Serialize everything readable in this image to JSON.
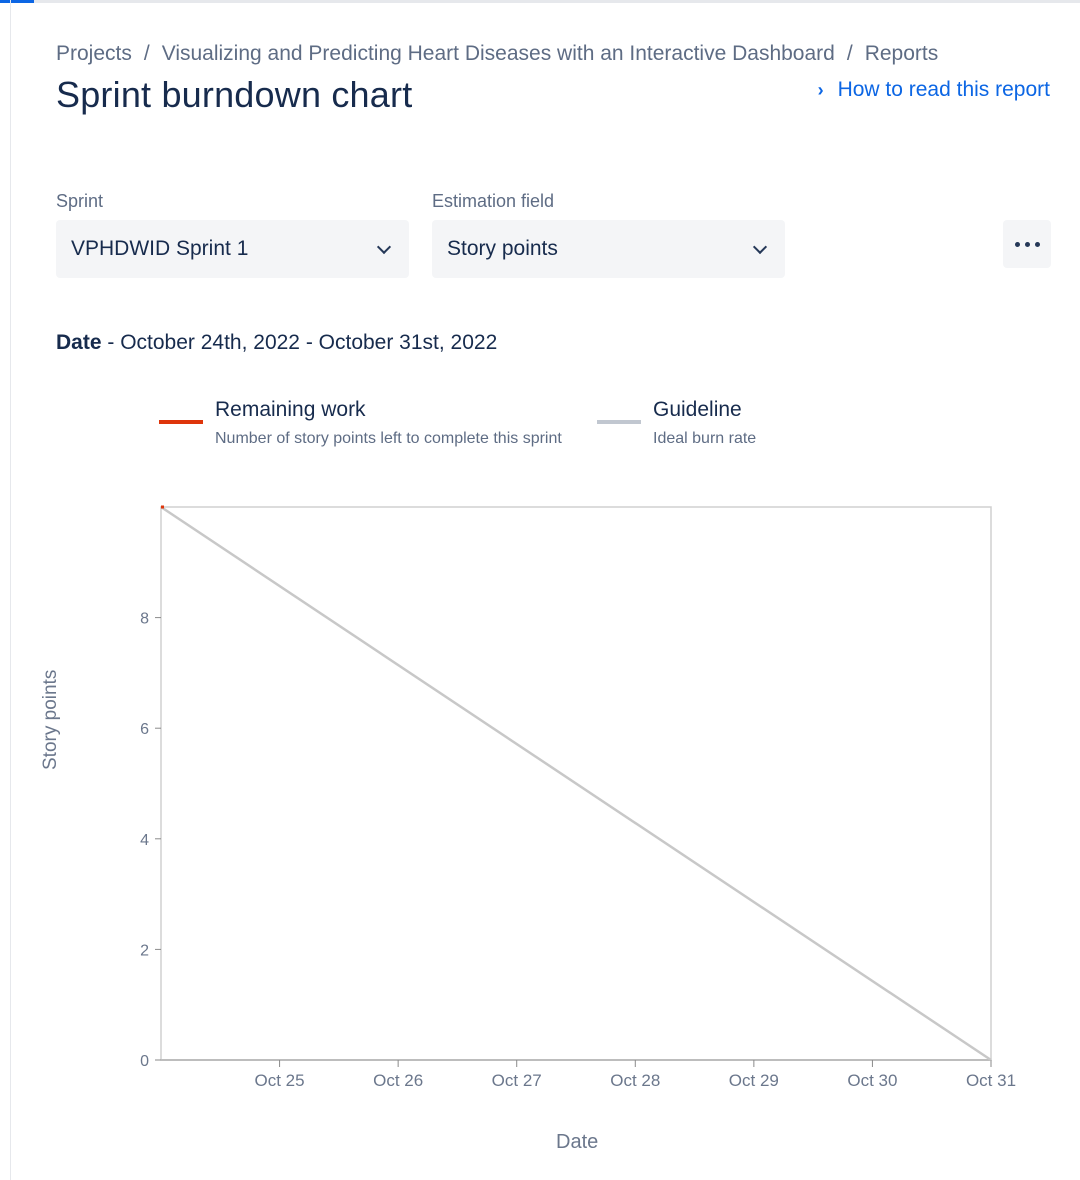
{
  "breadcrumb": {
    "items": [
      "Projects",
      "Visualizing and Predicting Heart Diseases with an Interactive Dashboard",
      "Reports"
    ],
    "separator": "/"
  },
  "page": {
    "title": "Sprint burndown chart",
    "help_link": "How to read this report",
    "help_icon": "chevron-right-icon"
  },
  "controls": {
    "sprint": {
      "label": "Sprint",
      "value": "VPHDWID Sprint 1",
      "icon": "chevron-down-icon"
    },
    "estimation": {
      "label": "Estimation field",
      "value": "Story points",
      "icon": "chevron-down-icon"
    },
    "more_icon": "more-horizontal-icon"
  },
  "date_range": {
    "label": "Date",
    "value": " - October 24th, 2022 - October 31st, 2022"
  },
  "legend": {
    "remaining": {
      "title": "Remaining work",
      "subtitle": "Number of story points left to complete this sprint",
      "color": "#de350b"
    },
    "guideline": {
      "title": "Guideline",
      "subtitle": "Ideal burn rate",
      "color": "#c1c7d0"
    }
  },
  "chart_data": {
    "type": "line",
    "title": "",
    "xlabel": "Date",
    "ylabel": "Story points",
    "x_range": [
      "2022-10-24",
      "2022-10-31"
    ],
    "ylim": [
      0,
      10
    ],
    "y_ticks": [
      0,
      2,
      4,
      6,
      8
    ],
    "x_ticks": [
      "Oct 25",
      "Oct 26",
      "Oct 27",
      "Oct 28",
      "Oct 29",
      "Oct 30",
      "Oct 31"
    ],
    "grid": false,
    "series": [
      {
        "name": "Guideline",
        "color": "#c8c8c8",
        "points": [
          {
            "x": "2022-10-24",
            "y": 10
          },
          {
            "x": "2022-10-31",
            "y": 0
          }
        ]
      },
      {
        "name": "Remaining work",
        "color": "#de350b",
        "points": [
          {
            "x": "2022-10-24",
            "y": 10
          }
        ]
      }
    ]
  }
}
